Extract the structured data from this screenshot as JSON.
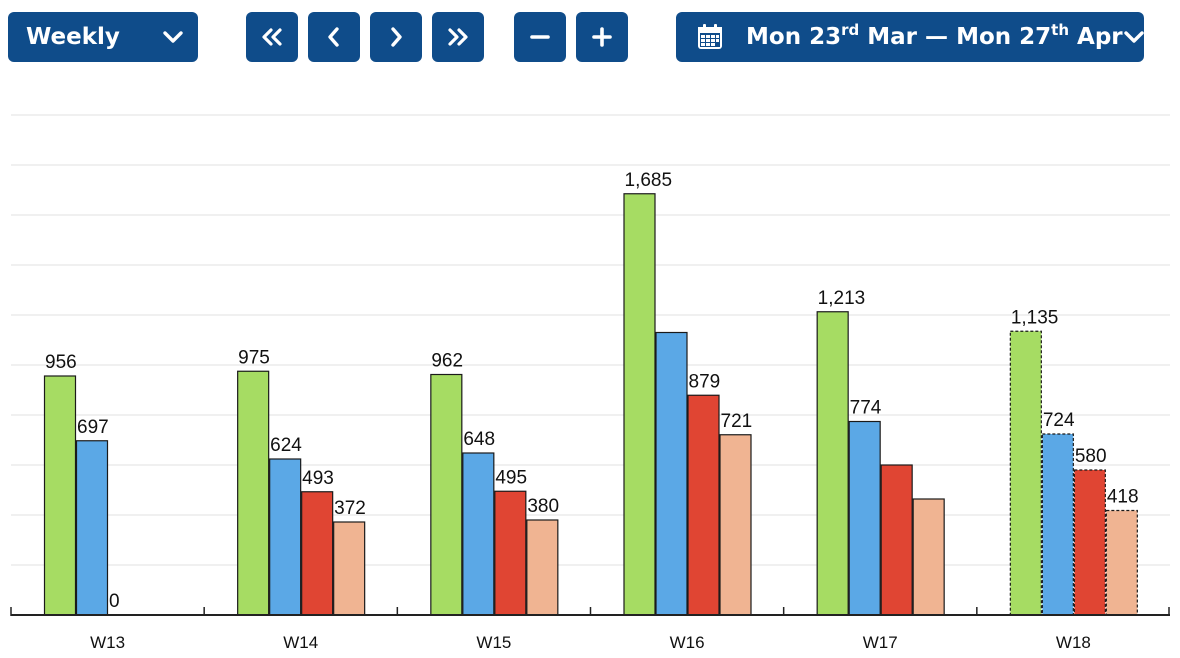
{
  "toolbar": {
    "period": "Weekly",
    "date_range": {
      "start_day": "Mon",
      "start_date": "23",
      "start_suffix": "rd",
      "start_month": "Mar",
      "separator": "—",
      "end_day": "Mon",
      "end_date": "27",
      "end_suffix": "th",
      "end_month": "Apr"
    },
    "icons": {
      "period_dropdown": "chevron-down-icon",
      "first": "double-chevron-left-icon",
      "prev": "chevron-left-icon",
      "next": "chevron-right-icon",
      "last": "double-chevron-right-icon",
      "zoom_out": "minus-icon",
      "zoom_in": "plus-icon",
      "calendar": "calendar-icon",
      "date_dropdown": "chevron-down-icon"
    },
    "color": "#0f4c8a"
  },
  "chart_data": {
    "type": "bar",
    "categories": [
      "W13",
      "W14",
      "W15",
      "W16",
      "W17",
      "W18"
    ],
    "ylim": [
      0,
      2000
    ],
    "grid": true,
    "series": [
      {
        "color": "#a6dc63",
        "values": [
          956,
          975,
          962,
          1685,
          1213,
          1135
        ],
        "labels": [
          "956",
          "975",
          "962",
          "1,685",
          "1,213",
          "1,135"
        ]
      },
      {
        "color": "#5ba8e6",
        "values": [
          697,
          624,
          648,
          1130,
          774,
          724
        ],
        "labels": [
          "697",
          "624",
          "648",
          "",
          "774",
          "724"
        ]
      },
      {
        "color": "#e04533",
        "values": [
          0,
          493,
          495,
          879,
          600,
          580
        ],
        "labels": [
          "0",
          "493",
          "495",
          "879",
          "",
          "580"
        ]
      },
      {
        "color": "#f0b492",
        "values": [
          0,
          372,
          380,
          721,
          464,
          418
        ],
        "labels": [
          "",
          "372",
          "380",
          "721",
          "",
          "418"
        ]
      }
    ],
    "projected_categories": [
      "W18"
    ]
  }
}
